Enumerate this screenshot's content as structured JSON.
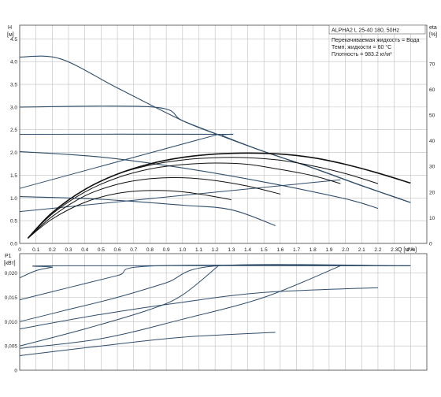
{
  "info": {
    "model": "ALPHA2 L 25-40 180, 50Hz",
    "liquid": "Перекачиваемая жидкость = Вода",
    "temp": "Темп. жидкости = 60 °C",
    "density": "Плотность = 983.2 кг/м³"
  },
  "colors": {
    "curve": "#2e4d6b",
    "efficiency": "#111111",
    "grid": "#bfbfbf",
    "axis": "#444444"
  },
  "chart_data": [
    {
      "type": "line",
      "name": "head-and-efficiency",
      "xlabel": "Q [м³/ч]",
      "ylabel": "H [м]",
      "y2label": "eta [%]",
      "xlim": [
        0,
        2.5
      ],
      "ylim": [
        0,
        4.8
      ],
      "y2lim": [
        0,
        85
      ],
      "grid": true,
      "x_ticks": [
        "0",
        "0.1",
        "0.2",
        "0.3",
        "0.4",
        "0.5",
        "0.6",
        "0.7",
        "0.8",
        "0.9",
        "1.0",
        "1.1",
        "1.2",
        "1.3",
        "1.4",
        "1.5",
        "1.6",
        "1.7",
        "1.8",
        "1.9",
        "2.0",
        "2.1",
        "2.2",
        "2.3",
        "2.4"
      ],
      "y_ticks": [
        "0.0",
        "0.5",
        "1.0",
        "1.5",
        "2.0",
        "2.5",
        "3.0",
        "3.5",
        "4.0",
        "4.5"
      ],
      "y2_ticks": [
        "0",
        "10",
        "20",
        "30",
        "40",
        "50",
        "60",
        "70"
      ],
      "head_curves": [
        {
          "x": [
            0,
            0.25,
            0.6,
            1.0,
            1.25,
            1.5,
            1.8,
            2.1,
            2.4
          ],
          "y": [
            4.1,
            4.06,
            3.42,
            2.7,
            2.35,
            2.02,
            1.66,
            1.27,
            0.9
          ]
        },
        {
          "x": [
            0,
            0.82,
            1.0,
            1.25,
            1.5,
            1.8,
            2.1,
            2.4
          ],
          "y": [
            3.0,
            3.0,
            2.7,
            2.35,
            2.02,
            1.66,
            1.27,
            0.9
          ]
        },
        {
          "x": [
            0,
            1.22,
            1.25,
            1.5,
            1.8,
            2.1,
            2.4
          ],
          "y": [
            2.4,
            2.4,
            2.36,
            2.02,
            1.66,
            1.27,
            0.9
          ]
        },
        {
          "x": [
            0,
            0.5,
            1.0,
            1.5,
            2.0,
            2.2
          ],
          "y": [
            2.02,
            1.9,
            1.66,
            1.35,
            0.98,
            0.77
          ]
        },
        {
          "x": [
            0,
            0.5,
            1.0,
            1.3,
            1.57
          ],
          "y": [
            1.03,
            0.97,
            0.84,
            0.74,
            0.39
          ]
        }
      ],
      "system_curves": [
        {
          "x": [
            0,
            1.22
          ],
          "y": [
            1.21,
            2.4
          ]
        },
        {
          "x": [
            0,
            1.97
          ],
          "y": [
            0.7,
            1.4
          ]
        }
      ],
      "efficiency_curves": [
        {
          "x": [
            0.05,
            0.2,
            0.4,
            0.6,
            0.8,
            1.0,
            1.2,
            1.4,
            1.6,
            1.8,
            2.0,
            2.2,
            2.4
          ],
          "y": [
            2,
            12,
            21,
            27,
            31,
            33.5,
            34.8,
            35.2,
            34.8,
            33.4,
            30.8,
            27.4,
            23.5
          ]
        },
        {
          "x": [
            0.05,
            0.2,
            0.4,
            0.6,
            0.8,
            1.0,
            1.2,
            1.4,
            1.6,
            1.8,
            2.0,
            2.2
          ],
          "y": [
            2,
            12,
            21,
            27,
            30.5,
            32.5,
            33.4,
            33.4,
            32.4,
            30.2,
            27.2,
            23.3
          ]
        },
        {
          "x": [
            0.05,
            0.2,
            0.4,
            0.6,
            0.8,
            1.0,
            1.2,
            1.4,
            1.6,
            1.8,
            1.97
          ],
          "y": [
            2,
            11.5,
            20,
            25.6,
            29,
            30.7,
            31.3,
            30.8,
            28.8,
            26.4,
            23.3
          ]
        },
        {
          "x": [
            0.05,
            0.2,
            0.4,
            0.6,
            0.8,
            1.0,
            1.2,
            1.4,
            1.6
          ],
          "y": [
            2,
            10.5,
            18.5,
            23,
            25.2,
            25.6,
            24.5,
            22.3,
            19.2
          ]
        },
        {
          "x": [
            0.05,
            0.2,
            0.4,
            0.6,
            0.8,
            1.0,
            1.2,
            1.3
          ],
          "y": [
            2,
            9.5,
            16,
            19.5,
            20.6,
            20.1,
            18.2,
            17.0
          ]
        }
      ]
    },
    {
      "type": "line",
      "name": "power",
      "xlabel": "",
      "ylabel": "P1 [кВт]",
      "xlim": [
        0,
        2.5
      ],
      "ylim": [
        0,
        0.024
      ],
      "grid": true,
      "y_ticks": [
        "0",
        "0,005",
        "0,010",
        "0,015",
        "0,020"
      ],
      "power_curves": [
        {
          "x": [
            0,
            0.1,
            0.2,
            0.25,
            2.4
          ],
          "y": [
            0.019,
            0.0205,
            0.0212,
            0.0215,
            0.0215
          ]
        },
        {
          "x": [
            0,
            0.3,
            0.6,
            0.85,
            2.4
          ],
          "y": [
            0.0145,
            0.017,
            0.0195,
            0.0215,
            0.0215
          ]
        },
        {
          "x": [
            0,
            0.3,
            0.6,
            0.9,
            1.22,
            2.4
          ],
          "y": [
            0.01,
            0.0125,
            0.015,
            0.018,
            0.0215,
            0.0215
          ]
        },
        {
          "x": [
            0,
            0.4,
            0.8,
            1.0,
            1.22
          ],
          "y": [
            0.005,
            0.0085,
            0.0125,
            0.0155,
            0.0215
          ]
        },
        {
          "x": [
            0,
            0.5,
            1.0,
            1.5,
            1.97
          ],
          "y": [
            0.0045,
            0.0065,
            0.0105,
            0.015,
            0.0215
          ]
        },
        {
          "x": [
            0,
            0.5,
            1.0,
            1.5,
            2.2
          ],
          "y": [
            0.0085,
            0.0115,
            0.014,
            0.016,
            0.017
          ]
        },
        {
          "x": [
            0,
            0.5,
            1.0,
            1.57
          ],
          "y": [
            0.003,
            0.005,
            0.0068,
            0.0078
          ]
        }
      ]
    }
  ]
}
